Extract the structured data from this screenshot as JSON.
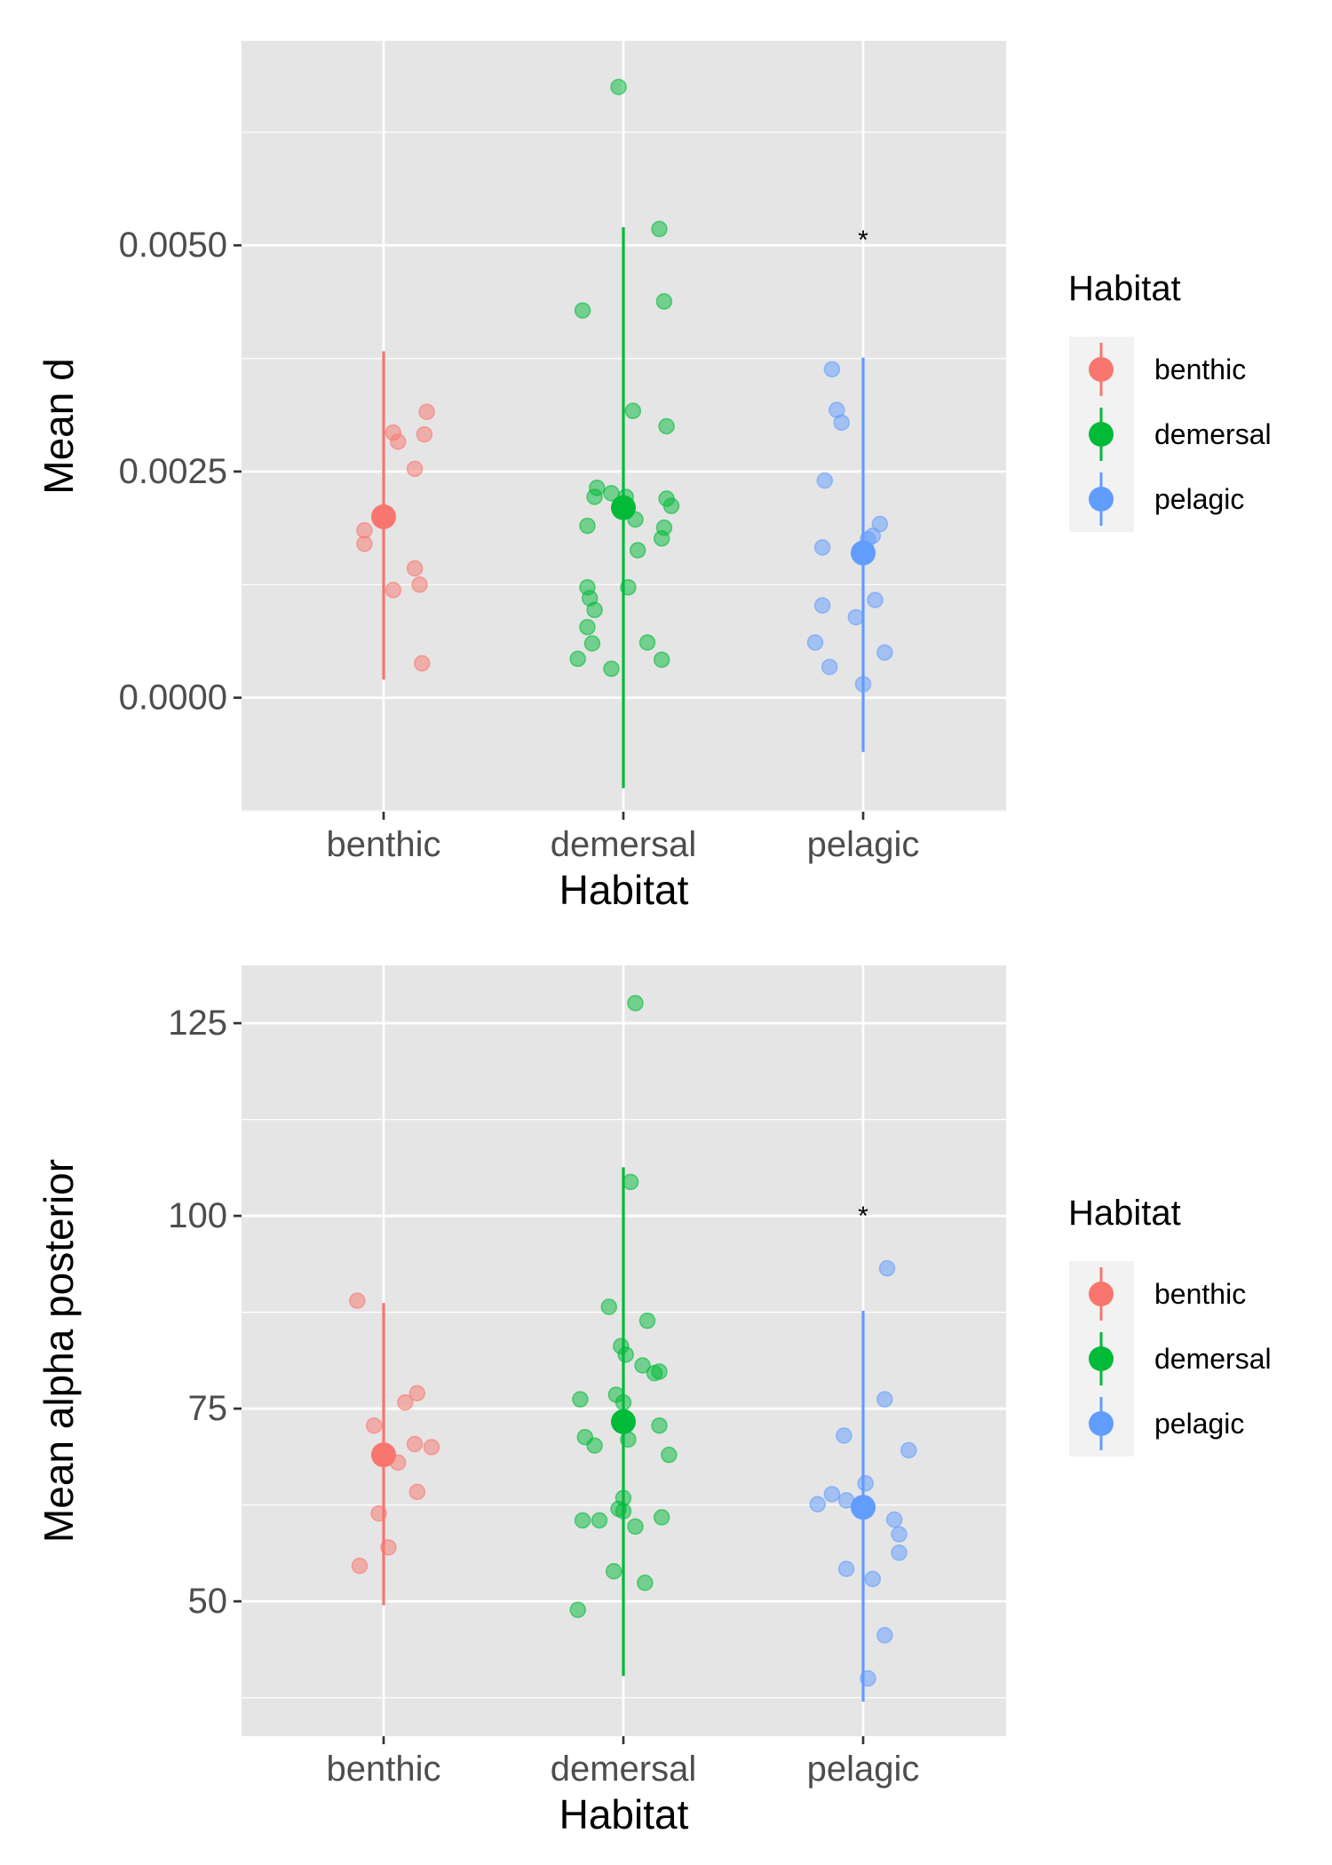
{
  "colors": {
    "benthic": "#F8766D",
    "demersal": "#00BA38",
    "pelagic": "#619CFF",
    "panel_bg": "#E5E5E5",
    "grid": "#FFFFFF"
  },
  "chart_data": [
    {
      "type": "scatter",
      "ylabel": "Mean d",
      "xlabel": "Habitat",
      "categories": [
        "benthic",
        "demersal",
        "pelagic"
      ],
      "ylim": [
        -0.00126,
        0.00726
      ],
      "yticks": [
        0.0,
        0.0025,
        0.005
      ],
      "ytick_labels": [
        "0.0000",
        "0.0025",
        "0.0050"
      ],
      "grid": true,
      "legend": {
        "title": "Habitat",
        "position": "right",
        "entries": [
          "benthic",
          "demersal",
          "pelagic"
        ]
      },
      "annotations": [
        {
          "text": "*",
          "category": "pelagic",
          "y": 0.0051
        }
      ],
      "series": [
        {
          "name": "benthic",
          "mean": 0.002,
          "interval": [
            0.0002,
            0.00383
          ],
          "points": [
            {
              "dx": -0.08,
              "y": 0.00185
            },
            {
              "dx": -0.08,
              "y": 0.0017
            },
            {
              "dx": 0.04,
              "y": 0.00293
            },
            {
              "dx": 0.06,
              "y": 0.00283
            },
            {
              "dx": 0.18,
              "y": 0.00316
            },
            {
              "dx": 0.17,
              "y": 0.00291
            },
            {
              "dx": 0.13,
              "y": 0.00253
            },
            {
              "dx": 0.13,
              "y": 0.00143
            },
            {
              "dx": 0.15,
              "y": 0.00125
            },
            {
              "dx": 0.04,
              "y": 0.00119
            },
            {
              "dx": 0.16,
              "y": 0.00038
            }
          ]
        },
        {
          "name": "demersal",
          "mean": 0.0021,
          "interval": [
            -0.001,
            0.0052
          ],
          "points": [
            {
              "dx": -0.02,
              "y": 0.00675
            },
            {
              "dx": 0.15,
              "y": 0.00518
            },
            {
              "dx": -0.17,
              "y": 0.00428
            },
            {
              "dx": 0.17,
              "y": 0.00438
            },
            {
              "dx": 0.04,
              "y": 0.00317
            },
            {
              "dx": 0.18,
              "y": 0.003
            },
            {
              "dx": -0.11,
              "y": 0.00232
            },
            {
              "dx": -0.12,
              "y": 0.00222
            },
            {
              "dx": -0.05,
              "y": 0.00226
            },
            {
              "dx": 0.01,
              "y": 0.00222
            },
            {
              "dx": 0.18,
              "y": 0.0022
            },
            {
              "dx": 0.2,
              "y": 0.00212
            },
            {
              "dx": 0.05,
              "y": 0.00197
            },
            {
              "dx": -0.15,
              "y": 0.0019
            },
            {
              "dx": 0.17,
              "y": 0.00188
            },
            {
              "dx": 0.16,
              "y": 0.00176
            },
            {
              "dx": 0.06,
              "y": 0.00163
            },
            {
              "dx": -0.15,
              "y": 0.00122
            },
            {
              "dx": 0.02,
              "y": 0.00122
            },
            {
              "dx": -0.14,
              "y": 0.0011
            },
            {
              "dx": -0.12,
              "y": 0.00097
            },
            {
              "dx": -0.15,
              "y": 0.00078
            },
            {
              "dx": -0.13,
              "y": 0.0006
            },
            {
              "dx": 0.1,
              "y": 0.00061
            },
            {
              "dx": -0.19,
              "y": 0.00043
            },
            {
              "dx": 0.16,
              "y": 0.00042
            },
            {
              "dx": -0.05,
              "y": 0.00032
            }
          ]
        },
        {
          "name": "pelagic",
          "mean": 0.0016,
          "interval": [
            -0.0006,
            0.00376
          ],
          "points": [
            {
              "dx": -0.13,
              "y": 0.00363
            },
            {
              "dx": -0.11,
              "y": 0.00318
            },
            {
              "dx": -0.09,
              "y": 0.00304
            },
            {
              "dx": -0.16,
              "y": 0.0024
            },
            {
              "dx": 0.07,
              "y": 0.00192
            },
            {
              "dx": 0.02,
              "y": 0.00175
            },
            {
              "dx": 0.04,
              "y": 0.00179
            },
            {
              "dx": -0.17,
              "y": 0.00166
            },
            {
              "dx": 0.05,
              "y": 0.00108
            },
            {
              "dx": -0.17,
              "y": 0.00102
            },
            {
              "dx": -0.03,
              "y": 0.00089
            },
            {
              "dx": -0.2,
              "y": 0.00061
            },
            {
              "dx": 0.09,
              "y": 0.0005
            },
            {
              "dx": -0.14,
              "y": 0.00034
            },
            {
              "dx": 0.0,
              "y": 0.00015
            }
          ]
        }
      ]
    },
    {
      "type": "scatter",
      "ylabel": "Mean alpha posterior",
      "xlabel": "Habitat",
      "categories": [
        "benthic",
        "demersal",
        "pelagic"
      ],
      "ylim": [
        32.5,
        132.5
      ],
      "yticks": [
        50,
        75,
        100,
        125
      ],
      "ytick_labels": [
        "50",
        "75",
        "100",
        "125"
      ],
      "grid": true,
      "legend": {
        "title": "Habitat",
        "position": "right",
        "entries": [
          "benthic",
          "demersal",
          "pelagic"
        ]
      },
      "annotations": [
        {
          "text": "*",
          "category": "pelagic",
          "y": 100.5
        }
      ],
      "series": [
        {
          "name": "benthic",
          "mean": 69,
          "interval": [
            49.5,
            88.7
          ],
          "points": [
            {
              "dx": -0.11,
              "y": 89.0
            },
            {
              "dx": 0.14,
              "y": 77.0
            },
            {
              "dx": 0.09,
              "y": 75.8
            },
            {
              "dx": -0.04,
              "y": 72.8
            },
            {
              "dx": 0.13,
              "y": 70.4
            },
            {
              "dx": 0.2,
              "y": 70.0
            },
            {
              "dx": 0.06,
              "y": 68.0
            },
            {
              "dx": 0.14,
              "y": 64.2
            },
            {
              "dx": -0.02,
              "y": 61.4
            },
            {
              "dx": 0.02,
              "y": 57.0
            },
            {
              "dx": -0.1,
              "y": 54.6
            }
          ]
        },
        {
          "name": "demersal",
          "mean": 73.3,
          "interval": [
            40.3,
            106.3
          ],
          "points": [
            {
              "dx": 0.05,
              "y": 127.6
            },
            {
              "dx": 0.03,
              "y": 104.4
            },
            {
              "dx": -0.06,
              "y": 88.2
            },
            {
              "dx": 0.1,
              "y": 86.4
            },
            {
              "dx": -0.01,
              "y": 83.1
            },
            {
              "dx": 0.01,
              "y": 82.0
            },
            {
              "dx": 0.08,
              "y": 80.6
            },
            {
              "dx": 0.13,
              "y": 79.6
            },
            {
              "dx": 0.15,
              "y": 79.8
            },
            {
              "dx": -0.03,
              "y": 76.8
            },
            {
              "dx": -0.18,
              "y": 76.2
            },
            {
              "dx": 0.0,
              "y": 75.8
            },
            {
              "dx": 0.15,
              "y": 72.8
            },
            {
              "dx": -0.16,
              "y": 71.3
            },
            {
              "dx": 0.02,
              "y": 71.0
            },
            {
              "dx": -0.12,
              "y": 70.2
            },
            {
              "dx": 0.19,
              "y": 69.0
            },
            {
              "dx": 0.0,
              "y": 63.4
            },
            {
              "dx": -0.02,
              "y": 62.0
            },
            {
              "dx": 0.0,
              "y": 61.7
            },
            {
              "dx": 0.16,
              "y": 60.9
            },
            {
              "dx": -0.17,
              "y": 60.5
            },
            {
              "dx": -0.1,
              "y": 60.5
            },
            {
              "dx": 0.05,
              "y": 59.7
            },
            {
              "dx": -0.04,
              "y": 53.9
            },
            {
              "dx": 0.09,
              "y": 52.4
            },
            {
              "dx": -0.19,
              "y": 48.9
            }
          ]
        },
        {
          "name": "pelagic",
          "mean": 62.2,
          "interval": [
            37.0,
            87.7
          ],
          "points": [
            {
              "dx": 0.1,
              "y": 93.2
            },
            {
              "dx": 0.09,
              "y": 76.2
            },
            {
              "dx": -0.08,
              "y": 71.5
            },
            {
              "dx": 0.19,
              "y": 69.6
            },
            {
              "dx": 0.01,
              "y": 65.3
            },
            {
              "dx": -0.13,
              "y": 63.9
            },
            {
              "dx": -0.07,
              "y": 63.1
            },
            {
              "dx": -0.19,
              "y": 62.6
            },
            {
              "dx": 0.13,
              "y": 60.6
            },
            {
              "dx": 0.15,
              "y": 58.7
            },
            {
              "dx": 0.15,
              "y": 56.3
            },
            {
              "dx": -0.07,
              "y": 54.2
            },
            {
              "dx": 0.04,
              "y": 52.9
            },
            {
              "dx": 0.09,
              "y": 45.6
            },
            {
              "dx": 0.02,
              "y": 40.0
            }
          ]
        }
      ]
    }
  ]
}
